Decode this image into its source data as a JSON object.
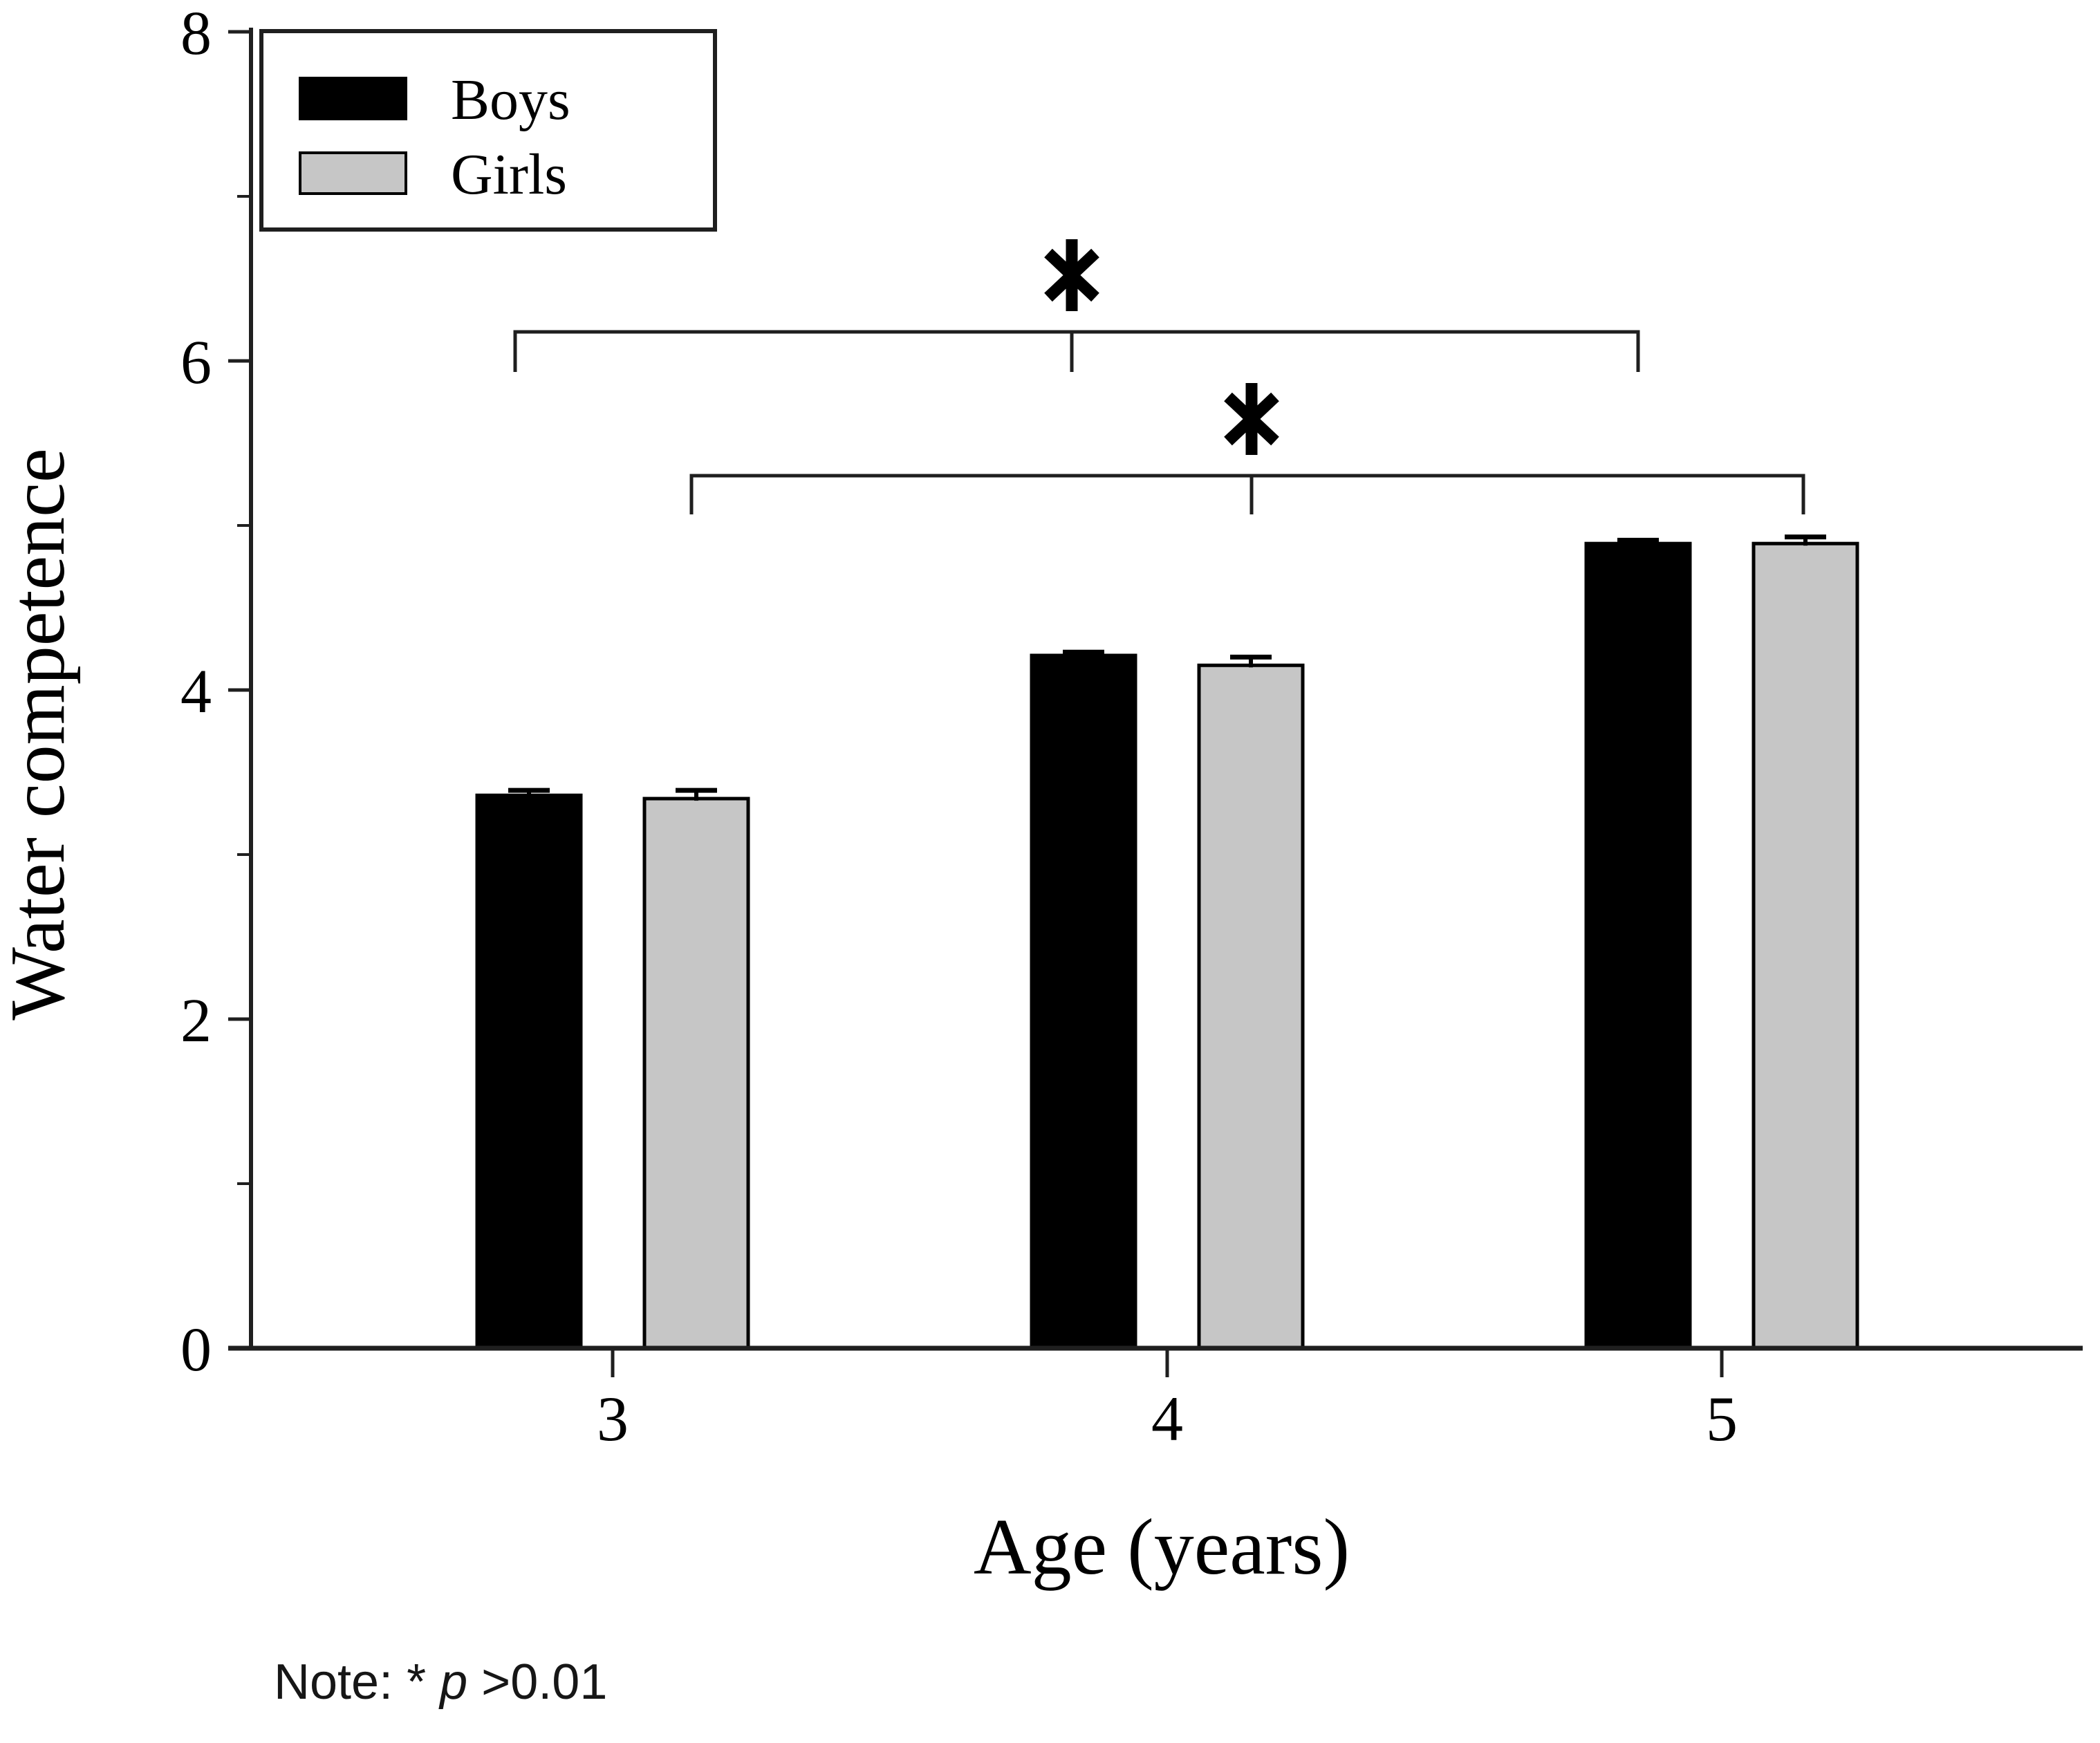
{
  "chart_data": {
    "type": "bar",
    "title": "",
    "ylabel": "Water competence",
    "xlabel": "Age (years)",
    "categories": [
      "3",
      "4",
      "5"
    ],
    "series": [
      {
        "name": "Boys",
        "color": "#000000",
        "values": [
          3.36,
          4.21,
          4.89
        ],
        "errors": [
          0.03,
          0.02,
          0.02
        ]
      },
      {
        "name": "Girls",
        "color": "#c6c6c6",
        "values": [
          3.34,
          4.15,
          4.89
        ],
        "errors": [
          0.05,
          0.05,
          0.04
        ]
      }
    ],
    "ylim": [
      0,
      8
    ],
    "y_major_ticks": [
      0,
      2,
      4,
      6,
      8
    ],
    "y_tick_labels": [
      "0",
      "2",
      "4",
      "6",
      "8"
    ],
    "y_minor_ticks": [
      1,
      3,
      5,
      7
    ],
    "grid": false,
    "legend_position": "top-left",
    "significance": [
      {
        "symbol": "*",
        "series": "Boys",
        "from_category": "3",
        "via_category": "4",
        "to_category": "5"
      },
      {
        "symbol": "*",
        "series": "Girls",
        "from_category": "3",
        "via_category": "4",
        "to_category": "5"
      }
    ]
  },
  "note": {
    "prefix": "Note: * ",
    "italic": "p",
    "suffix": " >0.01"
  }
}
